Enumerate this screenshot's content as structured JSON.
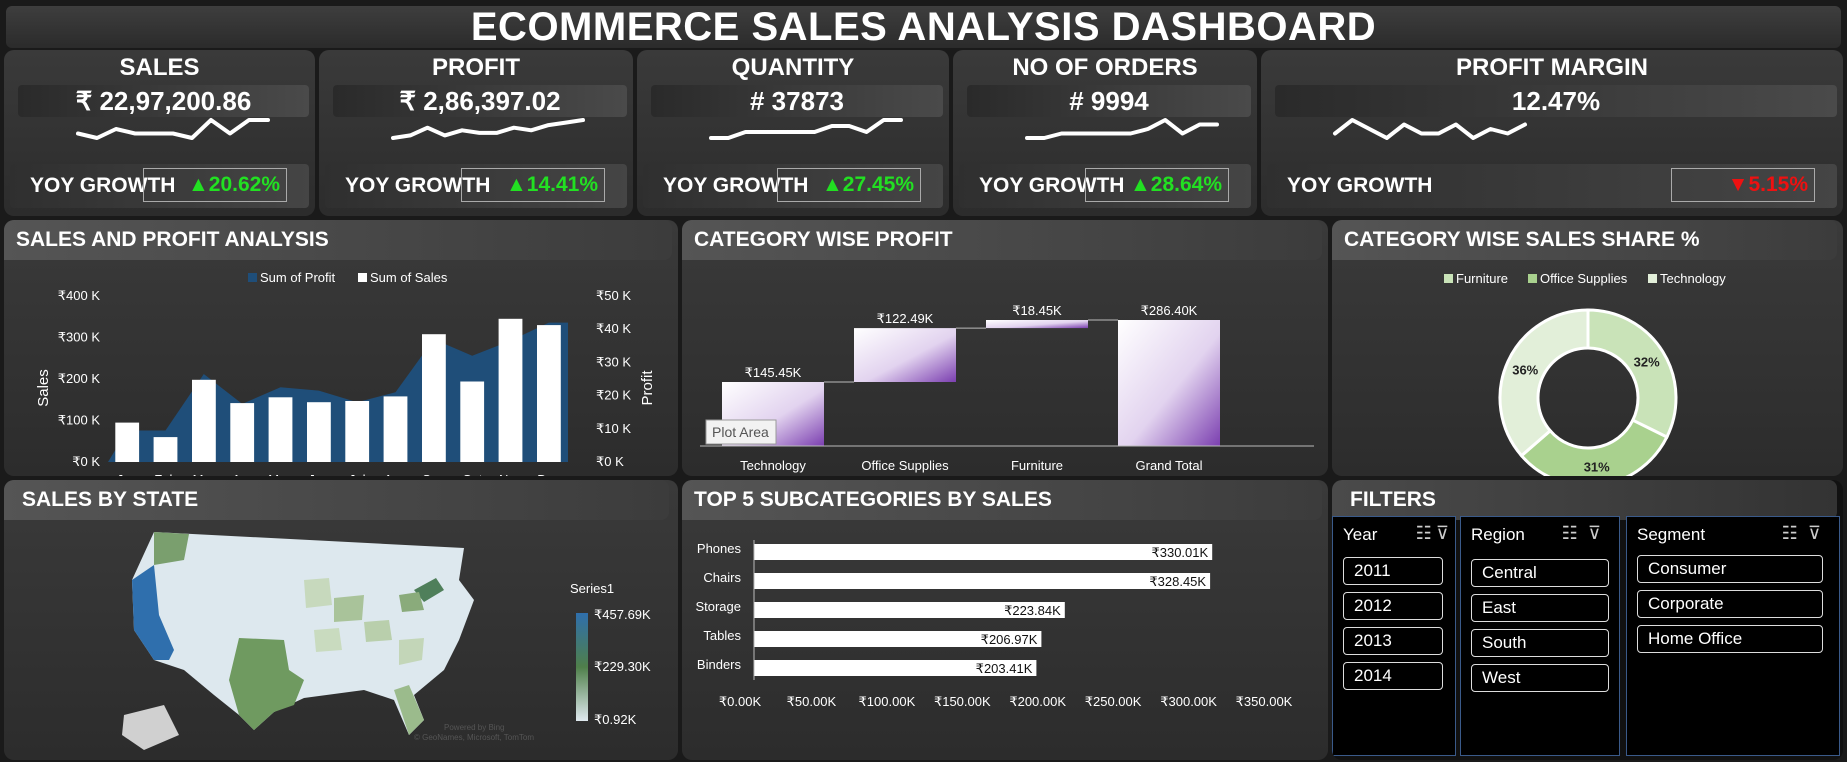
{
  "title": "ECOMMERCE SALES ANALYSIS DASHBOARD",
  "kpis": [
    {
      "label": "SALES",
      "value": "₹ 22,97,200.86",
      "yoy_label": "YOY GROWTH",
      "yoy": "▲20.62%",
      "yoy_color": "#22e022",
      "spark": [
        3,
        2,
        4,
        3,
        3,
        3,
        2,
        6,
        3,
        6,
        6
      ]
    },
    {
      "label": "PROFIT",
      "value": "₹ 2,86,397.02",
      "yoy_label": "YOY GROWTH",
      "yoy": "▲14.41%",
      "yoy_color": "#22e022",
      "spark": [
        2,
        3,
        6,
        3,
        5,
        4,
        4,
        6,
        5,
        7,
        8,
        9
      ]
    },
    {
      "label": "QUANTITY",
      "value": "# 37873",
      "yoy_label": "YOY GROWTH",
      "yoy": "▲27.45%",
      "yoy_color": "#22e022",
      "spark": [
        3,
        3,
        4,
        4,
        4,
        4,
        4,
        5,
        5,
        4,
        6,
        6
      ]
    },
    {
      "label": "NO OF ORDERS",
      "value": "# 9994",
      "yoy_label": "YOY GROWTH",
      "yoy": "▲28.64%",
      "yoy_color": "#22e022",
      "spark": [
        3,
        3,
        4,
        4,
        4,
        4,
        4,
        5,
        7,
        4,
        6,
        6
      ]
    },
    {
      "label": "PROFIT MARGIN",
      "value": "12.47%",
      "yoy_label": "YOY GROWTH",
      "yoy": "▼5.15%",
      "yoy_color": "#ee1111",
      "spark": [
        5,
        8,
        6,
        4,
        7,
        5,
        5,
        7,
        4,
        6,
        5,
        7
      ]
    }
  ],
  "sales_profit": {
    "heading": "SALES AND PROFIT ANALYSIS",
    "chart_data": {
      "type": "bar",
      "categories": [
        "Jan",
        "Feb",
        "Mar",
        "Apr",
        "May",
        "Jun",
        "Jul",
        "Aug",
        "Sep",
        "Oct",
        "Nov",
        "Dec"
      ],
      "series": [
        {
          "name": "Sum of Profit",
          "type": "area",
          "axis": "secondary",
          "values": [
            9500,
            9500,
            26500,
            17500,
            22500,
            21500,
            18000,
            21000,
            37000,
            32000,
            36500,
            42000
          ]
        },
        {
          "name": "Sum of Sales",
          "type": "bar",
          "axis": "primary",
          "values": [
            95000,
            60000,
            198000,
            142000,
            156000,
            144000,
            147000,
            158000,
            308000,
            194000,
            345000,
            330000
          ]
        }
      ],
      "ylabel": "Sales",
      "y2label": "Profit",
      "ylim": [
        0,
        400000
      ],
      "y2lim": [
        0,
        50000
      ],
      "yticks": [
        "₹0 K",
        "₹100 K",
        "₹200 K",
        "₹300 K",
        "₹400 K"
      ],
      "y2ticks": [
        "₹0 K",
        "₹10 K",
        "₹20 K",
        "₹30 K",
        "₹40 K",
        "₹50 K"
      ],
      "colors": {
        "profit": "#1f4e79",
        "sales": "#ffffff"
      },
      "legend": "top"
    }
  },
  "category_profit": {
    "heading": "CATEGORY WISE PROFIT",
    "chart_data": {
      "type": "bar",
      "subtype": "waterfall",
      "categories": [
        "Technology",
        "Office Supplies",
        "Furniture",
        "Grand Total"
      ],
      "values": [
        145.45,
        122.49,
        18.45,
        286.4
      ],
      "labels": [
        "₹145.45K",
        "₹122.49K",
        "₹18.45K",
        "₹286.40K"
      ],
      "ylim": [
        0,
        300
      ]
    },
    "tooltip": "Plot Area"
  },
  "category_share": {
    "heading": "CATEGORY WISE SALES SHARE %",
    "chart_data": {
      "type": "pie",
      "subtype": "donut",
      "categories": [
        "Furniture",
        "Office Supplies",
        "Technology"
      ],
      "values": [
        32,
        31,
        36
      ],
      "labels": [
        "32%",
        "31%",
        "36%"
      ],
      "colors": [
        "#c9e3b8",
        "#a9d18e",
        "#e2efd9"
      ],
      "legend": "top"
    }
  },
  "state_map": {
    "heading": "SALES BY STATE",
    "legend_title": "Series1",
    "legend_max": "₹457.69K",
    "legend_mid": "₹229.30K",
    "legend_min": "₹0.92K",
    "credit1": "Powered by Bing",
    "credit2": "© GeoNames, Microsoft, TomTom"
  },
  "subcategories": {
    "heading": "TOP 5 SUBCATEGORIES BY SALES",
    "chart_data": {
      "type": "bar",
      "orientation": "horizontal",
      "categories": [
        "Phones",
        "Chairs",
        "Storage",
        "Tables",
        "Binders"
      ],
      "values": [
        330.01,
        328.45,
        223.84,
        206.97,
        203.41
      ],
      "labels": [
        "₹330.01K",
        "₹328.45K",
        "₹223.84K",
        "₹206.97K",
        "₹203.41K"
      ],
      "xlim": [
        0,
        350
      ],
      "xticks": [
        "₹0.00K",
        "₹50.00K",
        "₹100.00K",
        "₹150.00K",
        "₹200.00K",
        "₹250.00K",
        "₹300.00K",
        "₹350.00K"
      ]
    }
  },
  "filters": {
    "heading": "FILTERS",
    "year": {
      "title": "Year",
      "items": [
        "2011",
        "2012",
        "2013",
        "2014"
      ]
    },
    "region": {
      "title": "Region",
      "items": [
        "Central",
        "East",
        "South",
        "West"
      ]
    },
    "segment": {
      "title": "Segment",
      "items": [
        "Consumer",
        "Corporate",
        "Home Office"
      ]
    },
    "icons": [
      "multi-select-icon",
      "clear-filter-icon"
    ]
  }
}
